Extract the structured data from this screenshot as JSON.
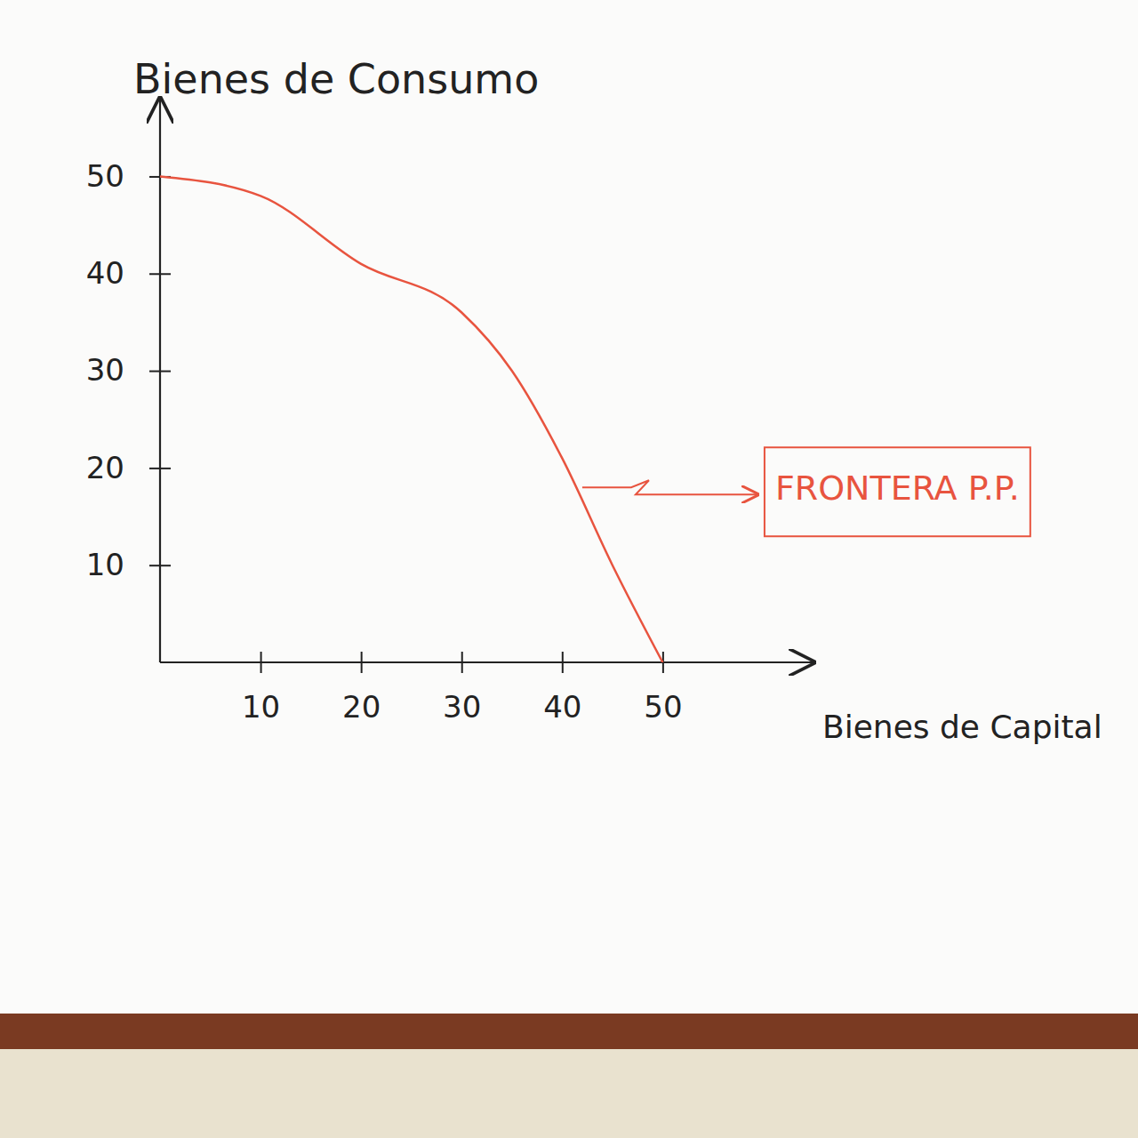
{
  "chart_data": {
    "type": "line",
    "xlabel": "Bienes de Capital",
    "ylabel": "Bienes de Consumo",
    "x": [
      0,
      10,
      20,
      30,
      35,
      40,
      45,
      50
    ],
    "values": [
      50,
      48,
      41,
      36,
      30,
      21,
      10,
      0
    ],
    "color": "#e8543f",
    "xlim": [
      0,
      65
    ],
    "ylim": [
      0,
      58
    ],
    "xticks": [
      10,
      20,
      30,
      40,
      50
    ],
    "yticks": [
      10,
      20,
      30,
      40,
      50
    ],
    "grid": false,
    "annotations": [
      {
        "text": "FRONTERA P.P.",
        "x": 42,
        "y": 18
      }
    ]
  }
}
